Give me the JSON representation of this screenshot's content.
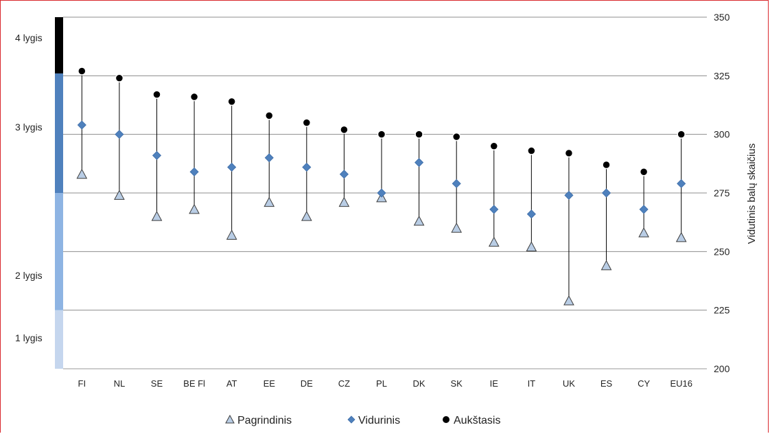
{
  "chart_data": {
    "type": "scatter",
    "categories": [
      "FI",
      "NL",
      "SE",
      "BE Fl",
      "AT",
      "EE",
      "DE",
      "CZ",
      "PL",
      "DK",
      "SK",
      "IE",
      "IT",
      "UK",
      "ES",
      "CY",
      "EU16"
    ],
    "series": [
      {
        "name": "Pagrindinis",
        "values": [
          283,
          274,
          265,
          268,
          257,
          271,
          265,
          271,
          273,
          263,
          260,
          254,
          252,
          229,
          244,
          258,
          256
        ]
      },
      {
        "name": "Vidurinis",
        "values": [
          304,
          300,
          291,
          284,
          286,
          290,
          286,
          283,
          275,
          288,
          279,
          268,
          266,
          274,
          275,
          268,
          279
        ]
      },
      {
        "name": "Aukštasis",
        "values": [
          327,
          324,
          317,
          316,
          314,
          308,
          305,
          302,
          300,
          300,
          299,
          295,
          293,
          292,
          287,
          284,
          300
        ]
      }
    ],
    "ylabel": "Vidutinis balų skaičius",
    "ylim": [
      200,
      350
    ],
    "yticks": [
      200,
      225,
      250,
      275,
      300,
      325,
      350
    ],
    "grid": true,
    "legend_position": "bottom",
    "levels": [
      {
        "label": "1 lygis",
        "from": 200,
        "to": 225,
        "color": "#c5d6ee"
      },
      {
        "label": "2 lygis",
        "from": 225,
        "to": 275,
        "color": "#8eb4e3"
      },
      {
        "label": "3 lygis",
        "from": 275,
        "to": 326,
        "color": "#4f81bd"
      },
      {
        "label": "4 lygis",
        "from": 326,
        "to": 350,
        "color": "#000000"
      }
    ],
    "colors": {
      "Pagrindinis": "#b9cde5",
      "Vidurinis": "#4f81bd",
      "Aukštasis": "#000000"
    }
  }
}
